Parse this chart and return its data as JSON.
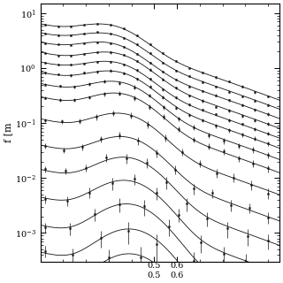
{
  "ylabel": "f [m",
  "xlabel_labels": [
    "0.5",
    "0.6"
  ],
  "xmin": 0.0,
  "xmax": 1.05,
  "ymin": 0.0003,
  "ymax": 15.0,
  "background_color": "#ffffff",
  "curve_color": "#111111",
  "n_curves": 15,
  "base_amps": [
    8.0,
    5.5,
    3.8,
    2.6,
    1.8,
    1.25,
    0.85,
    0.55,
    0.25,
    0.1,
    0.045,
    0.018,
    0.007,
    0.0025,
    0.0009
  ],
  "peak_positions": [
    0.3,
    0.3,
    0.3,
    0.32,
    0.32,
    0.33,
    0.34,
    0.35,
    0.36,
    0.37,
    0.38,
    0.38,
    0.39,
    0.4,
    0.4
  ],
  "left_heights": [
    0.8,
    0.8,
    0.78,
    0.75,
    0.72,
    0.68,
    0.62,
    0.55,
    0.48,
    0.4,
    0.32,
    0.25,
    0.2,
    0.18,
    0.16
  ],
  "n_points": [
    18,
    18,
    18,
    18,
    18,
    18,
    16,
    16,
    14,
    13,
    12,
    11,
    10,
    9,
    8
  ],
  "err_scales": [
    0.02,
    0.02,
    0.025,
    0.03,
    0.03,
    0.04,
    0.05,
    0.06,
    0.08,
    0.1,
    0.13,
    0.16,
    0.2,
    0.25,
    0.3
  ]
}
